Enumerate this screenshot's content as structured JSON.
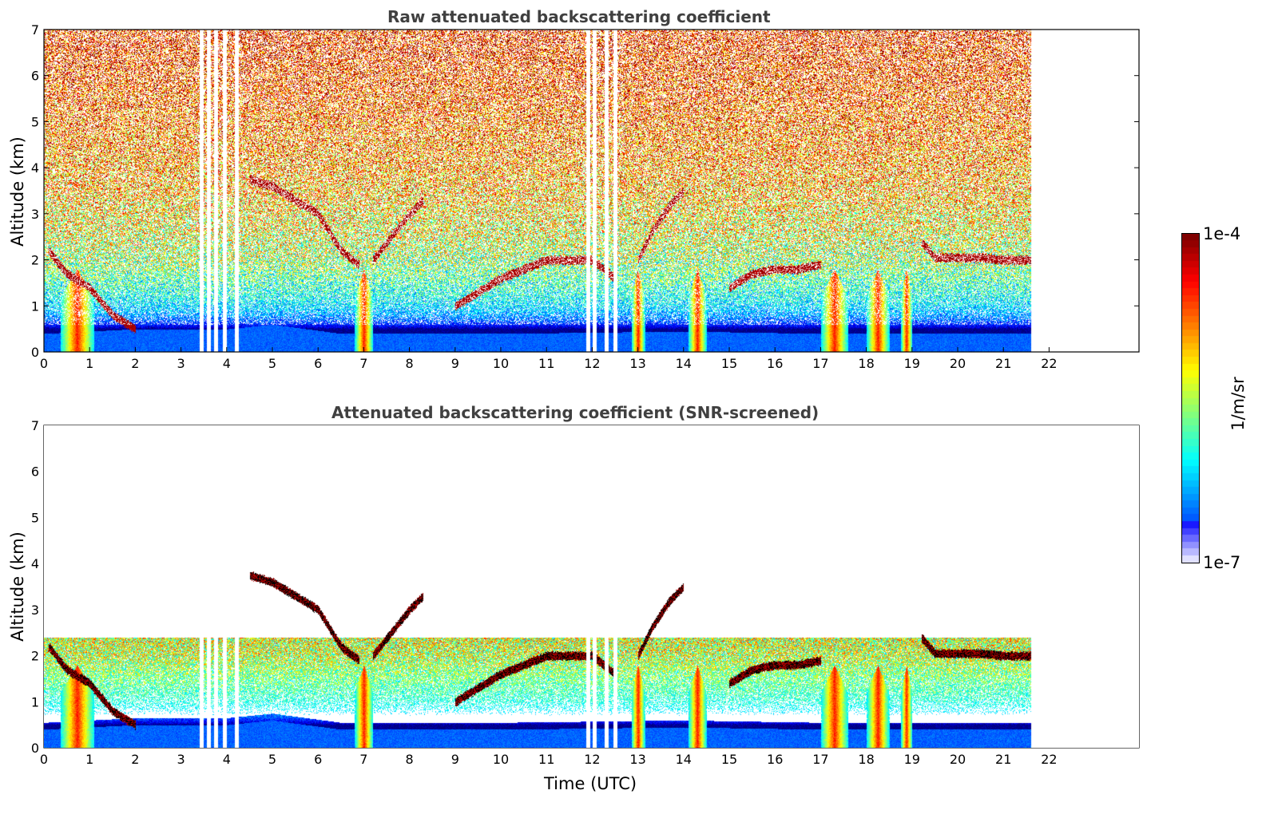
{
  "colorbar": {
    "top_label": "1e-4",
    "bottom_label": "1e-7",
    "unit": "1/m/sr"
  },
  "colors": {
    "jet_dark_red": "#8b0000",
    "jet_red": "#ff2000",
    "jet_orange": "#ff9000",
    "jet_yellow": "#ffff00",
    "jet_green": "#80ff80",
    "jet_cyan": "#00e0ff",
    "jet_blue": "#0060ff",
    "jet_deep_blue": "#0000e0",
    "pale": "#e0e0ff",
    "title_gray": "#404040"
  },
  "chart_data": [
    {
      "type": "heatmap",
      "title": "Raw attenuated backscattering coefficient",
      "xlabel": "",
      "ylabel": "Altitude (km)",
      "xlim": [
        0,
        24
      ],
      "ylim": [
        0,
        7
      ],
      "x_ticks": [
        "0",
        "1",
        "2",
        "3",
        "4",
        "5",
        "6",
        "7",
        "8",
        "9",
        "10",
        "11",
        "12",
        "13",
        "14",
        "15",
        "16",
        "17",
        "18",
        "19",
        "20",
        "21",
        "22"
      ],
      "y_ticks": [
        "0",
        "1",
        "2",
        "3",
        "4",
        "5",
        "6",
        "7"
      ],
      "data_end_time": 21.6,
      "grid": false,
      "features": {
        "background_ramp": [
          [
            0,
            1e-07
          ],
          [
            0.5,
            1e-07
          ],
          [
            1.5,
            2e-06
          ],
          [
            3,
            8e-06
          ],
          [
            5,
            2e-05
          ],
          [
            7,
            4e-05
          ]
        ],
        "surface_layer_top_km": [
          [
            0,
            0.4
          ],
          [
            2,
            0.5
          ],
          [
            4,
            0.5
          ],
          [
            5,
            0.6
          ],
          [
            6.5,
            0.4
          ],
          [
            10,
            0.4
          ],
          [
            14,
            0.45
          ],
          [
            17,
            0.4
          ],
          [
            21.6,
            0.4
          ]
        ],
        "data_gaps_utc": [
          3.45,
          3.6,
          3.75,
          3.95,
          4.22,
          11.9,
          12.05,
          12.3,
          12.5
        ],
        "precipitation_shafts_utc": [
          [
            0.35,
            1.1
          ],
          [
            6.8,
            7.2
          ],
          [
            12.85,
            13.15
          ],
          [
            14.1,
            14.5
          ],
          [
            17.0,
            17.6
          ],
          [
            18.0,
            18.5
          ],
          [
            18.75,
            19.0
          ]
        ],
        "cloud_layers": [
          {
            "name": "Low cloud 0-2h",
            "points": [
              [
                0.1,
                2.2
              ],
              [
                0.5,
                1.7
              ],
              [
                1.0,
                1.4
              ],
              [
                1.5,
                0.8
              ],
              [
                2.0,
                0.5
              ]
            ]
          },
          {
            "name": "Descending layer 4.5-7h",
            "points": [
              [
                4.5,
                3.75
              ],
              [
                5.0,
                3.6
              ],
              [
                5.5,
                3.3
              ],
              [
                6.0,
                3.0
              ],
              [
                6.5,
                2.2
              ],
              [
                6.9,
                1.9
              ]
            ]
          },
          {
            "name": "Rising layer 7-8.3h",
            "points": [
              [
                7.2,
                2.0
              ],
              [
                7.6,
                2.5
              ],
              [
                8.0,
                3.0
              ],
              [
                8.3,
                3.3
              ]
            ]
          },
          {
            "name": "Mid layer 9-13h",
            "points": [
              [
                9.0,
                1.0
              ],
              [
                10.0,
                1.6
              ],
              [
                11.0,
                2.0
              ],
              [
                12.0,
                2.0
              ],
              [
                12.5,
                1.6
              ]
            ]
          },
          {
            "name": "Rising layer 13-14h",
            "points": [
              [
                13.0,
                2.0
              ],
              [
                13.3,
                2.6
              ],
              [
                13.7,
                3.2
              ],
              [
                14.0,
                3.5
              ]
            ]
          },
          {
            "name": "Layer 15-17h",
            "points": [
              [
                15.0,
                1.4
              ],
              [
                15.5,
                1.7
              ],
              [
                16.0,
                1.8
              ],
              [
                16.5,
                1.8
              ],
              [
                17.0,
                1.9
              ]
            ]
          },
          {
            "name": "Layer 19-21.6h",
            "points": [
              [
                19.2,
                2.4
              ],
              [
                19.5,
                2.05
              ],
              [
                20.0,
                2.05
              ],
              [
                20.5,
                2.05
              ],
              [
                21.0,
                2.0
              ],
              [
                21.6,
                2.0
              ]
            ]
          }
        ]
      }
    },
    {
      "type": "heatmap",
      "title": "Attenuated backscattering coefficient (SNR-screened)",
      "xlabel": "Time (UTC)",
      "ylabel": "Altitude (km)",
      "xlim": [
        0,
        24
      ],
      "ylim": [
        0,
        7
      ],
      "x_ticks": [
        "0",
        "1",
        "2",
        "3",
        "4",
        "5",
        "6",
        "7",
        "8",
        "9",
        "10",
        "11",
        "12",
        "13",
        "14",
        "15",
        "16",
        "17",
        "18",
        "19",
        "20",
        "21",
        "22"
      ],
      "y_ticks": [
        "0",
        "1",
        "2",
        "3",
        "4",
        "5",
        "6",
        "7"
      ],
      "data_end_time": 21.6,
      "grid": false,
      "screened": true
    }
  ]
}
